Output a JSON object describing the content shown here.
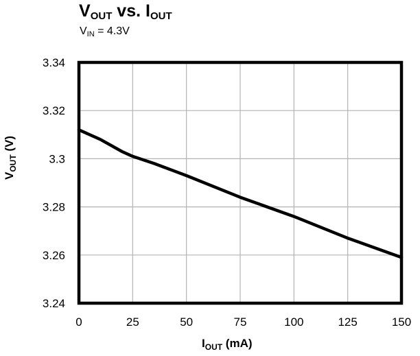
{
  "chart_data": {
    "type": "line",
    "title": {
      "main": "V",
      "main_sub": "OUT",
      "mid": " vs. I",
      "mid_sub": "OUT"
    },
    "subtitle": {
      "pre": "V",
      "sub": "IN",
      "post": " = 4.3V"
    },
    "xlabel": {
      "pre": "I",
      "sub": "OUT",
      "post": " (mA)"
    },
    "ylabel": {
      "pre": "V",
      "sub": "OUT",
      "post": " (V)"
    },
    "xlim": [
      0,
      150
    ],
    "ylim": [
      3.24,
      3.34
    ],
    "xticks": [
      "0",
      "25",
      "50",
      "75",
      "100",
      "125",
      "150"
    ],
    "yticks": [
      "3.34",
      "3.32",
      "3.3",
      "3.28",
      "3.26",
      "3.24"
    ],
    "grid": true,
    "series": [
      {
        "color": "#000000",
        "x": [
          0,
          10,
          20,
          25,
          35,
          50,
          75,
          100,
          125,
          150
        ],
        "y": [
          3.312,
          3.308,
          3.303,
          3.301,
          3.298,
          3.293,
          3.284,
          3.276,
          3.267,
          3.259
        ]
      }
    ]
  }
}
